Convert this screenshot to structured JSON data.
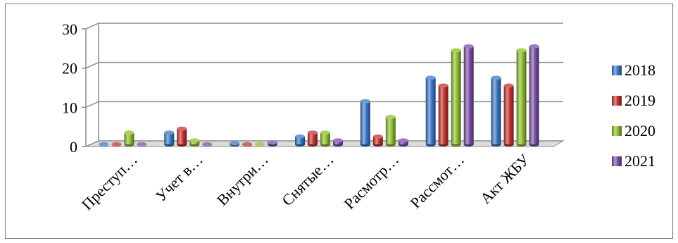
{
  "chart_data": {
    "type": "bar",
    "categories": [
      "Преступ…",
      "Учет в…",
      "Внутри…",
      "Снятые…",
      "Расмотр…",
      "Рассмот…",
      "Акт ЖБУ"
    ],
    "series": [
      {
        "name": "2018",
        "color": "#3a78c8",
        "values": [
          0,
          3,
          0.3,
          2,
          11,
          17,
          17
        ]
      },
      {
        "name": "2019",
        "color": "#c43330",
        "values": [
          0,
          4,
          0,
          3,
          2,
          15,
          15
        ]
      },
      {
        "name": "2020",
        "color": "#8fbf2e",
        "values": [
          3,
          1,
          0,
          3,
          7,
          24,
          24
        ]
      },
      {
        "name": "2021",
        "color": "#7b4fa8",
        "values": [
          0,
          0,
          0.5,
          1,
          1,
          25,
          25
        ]
      }
    ],
    "ylim": [
      0,
      30
    ],
    "yticks": [
      "0",
      "10",
      "20",
      "30"
    ],
    "grid": true,
    "legend": "right"
  }
}
